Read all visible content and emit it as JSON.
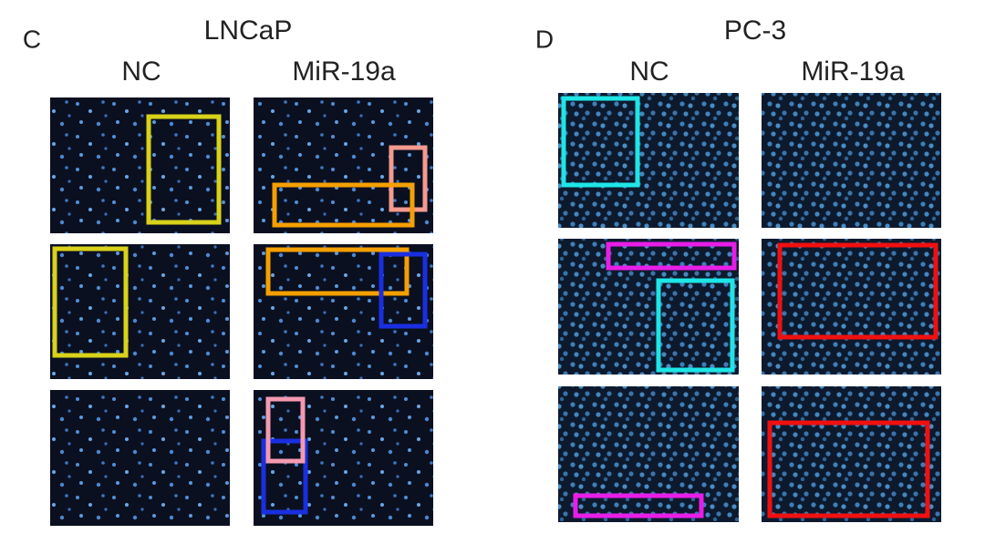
{
  "panels": [
    {
      "letter": "C",
      "cell_line": "LNCaP",
      "columns": [
        "NC",
        "MiR-19a"
      ]
    },
    {
      "letter": "D",
      "cell_line": "PC-3",
      "columns": [
        "NC",
        "MiR-19a"
      ]
    }
  ]
}
